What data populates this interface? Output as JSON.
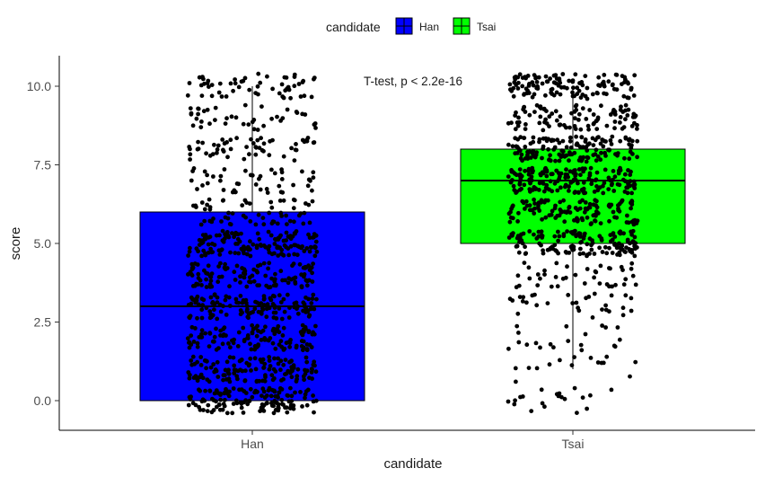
{
  "chart_data": {
    "type": "box",
    "title": "",
    "xlabel": "candidate",
    "ylabel": "score",
    "ylim": [
      -0.9,
      10.9
    ],
    "yticks": [
      0.0,
      2.5,
      5.0,
      7.5,
      10.0
    ],
    "ytick_labels": [
      "0.0",
      "2.5",
      "5.0",
      "7.5",
      "10.0"
    ],
    "categories": [
      "Han",
      "Tsai"
    ],
    "legend": {
      "title": "candidate",
      "position": "top",
      "entries": [
        "Han",
        "Tsai"
      ]
    },
    "series": [
      {
        "name": "Han",
        "color": "#0000ff",
        "min": 0.0,
        "q1": 0.0,
        "median": 3.0,
        "q3": 6.0,
        "max": 10.0
      },
      {
        "name": "Tsai",
        "color": "#00ff00",
        "min": 1.0,
        "q1": 5.0,
        "median": 7.0,
        "q3": 8.0,
        "max": 10.0
      }
    ],
    "jitter_points": {
      "color": "#000000",
      "note": "Jittered raw scores overlaid on each box",
      "Han": {
        "range": [
          -0.4,
          10.4
        ]
      },
      "Tsai": {
        "range": [
          -0.4,
          10.4
        ]
      }
    },
    "annotation": "T-test, p < 2.2e-16",
    "grid": false
  },
  "colors": {
    "axis": "#000000",
    "tick_text": "#4d4d4d",
    "text": "#1a1a1a"
  }
}
